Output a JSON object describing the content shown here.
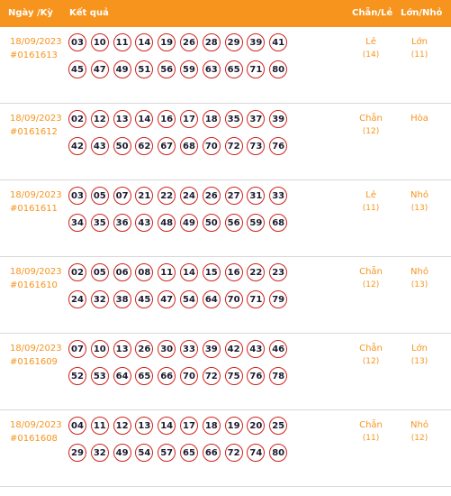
{
  "header": {
    "date_label": "Ngày /Kỳ",
    "result_label": "Kết quả",
    "parity_label": "Chẵn/Lẻ",
    "size_label": "Lớn/Nhỏ"
  },
  "rows": [
    {
      "date": "18/09/2023",
      "period": "#0161613",
      "line1": [
        "03",
        "10",
        "11",
        "14",
        "19",
        "26",
        "28",
        "29",
        "39",
        "41"
      ],
      "line2": [
        "45",
        "47",
        "49",
        "51",
        "56",
        "59",
        "63",
        "65",
        "71",
        "80"
      ],
      "parity": "Lẻ",
      "parity_count": "(14)",
      "size": "Lớn",
      "size_count": "(11)"
    },
    {
      "date": "18/09/2023",
      "period": "#0161612",
      "line1": [
        "02",
        "12",
        "13",
        "14",
        "16",
        "17",
        "18",
        "35",
        "37",
        "39"
      ],
      "line2": [
        "42",
        "43",
        "50",
        "62",
        "67",
        "68",
        "70",
        "72",
        "73",
        "76"
      ],
      "parity": "Chẵn",
      "parity_count": "(12)",
      "size": "Hòa",
      "size_count": ""
    },
    {
      "date": "18/09/2023",
      "period": "#0161611",
      "line1": [
        "03",
        "05",
        "07",
        "21",
        "22",
        "24",
        "26",
        "27",
        "31",
        "33"
      ],
      "line2": [
        "34",
        "35",
        "36",
        "43",
        "48",
        "49",
        "50",
        "56",
        "59",
        "68"
      ],
      "parity": "Lẻ",
      "parity_count": "(11)",
      "size": "Nhỏ",
      "size_count": "(13)"
    },
    {
      "date": "18/09/2023",
      "period": "#0161610",
      "line1": [
        "02",
        "05",
        "06",
        "08",
        "11",
        "14",
        "15",
        "16",
        "22",
        "23"
      ],
      "line2": [
        "24",
        "32",
        "38",
        "45",
        "47",
        "54",
        "64",
        "70",
        "71",
        "79"
      ],
      "parity": "Chẵn",
      "parity_count": "(12)",
      "size": "Nhỏ",
      "size_count": "(13)"
    },
    {
      "date": "18/09/2023",
      "period": "#0161609",
      "line1": [
        "07",
        "10",
        "13",
        "26",
        "30",
        "33",
        "39",
        "42",
        "43",
        "46"
      ],
      "line2": [
        "52",
        "53",
        "64",
        "65",
        "66",
        "70",
        "72",
        "75",
        "76",
        "78"
      ],
      "parity": "Chẵn",
      "parity_count": "(12)",
      "size": "Lớn",
      "size_count": "(13)"
    },
    {
      "date": "18/09/2023",
      "period": "#0161608",
      "line1": [
        "04",
        "11",
        "12",
        "13",
        "14",
        "17",
        "18",
        "19",
        "20",
        "25"
      ],
      "line2": [
        "29",
        "32",
        "49",
        "54",
        "57",
        "65",
        "66",
        "72",
        "74",
        "80"
      ],
      "parity": "Chẵn",
      "parity_count": "(11)",
      "size": "Nhỏ",
      "size_count": "(12)"
    }
  ]
}
